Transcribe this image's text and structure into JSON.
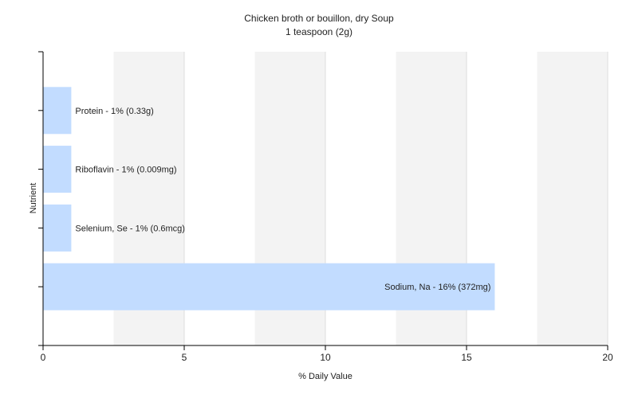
{
  "chart_data": {
    "type": "bar",
    "orientation": "horizontal",
    "title": "Chicken broth or bouillon, dry Soup",
    "subtitle": "1 teaspoon (2g)",
    "xlabel": "% Daily Value",
    "ylabel": "Nutrient",
    "xlim": [
      0,
      20
    ],
    "xticks": [
      0,
      5,
      10,
      15,
      20
    ],
    "grid": true,
    "legend": "none",
    "categories": [
      "Protein",
      "Riboflavin",
      "Selenium, Se",
      "Sodium, Na"
    ],
    "values": [
      1,
      1,
      1,
      16
    ],
    "data_labels": [
      "Protein - 1% (0.33g)",
      "Riboflavin - 1% (0.009mg)",
      "Selenium, Se - 1% (0.6mcg)",
      "Sodium, Na - 16% (372mg)"
    ],
    "colors": {
      "bar": "#c2dcff",
      "axis": "#000000",
      "grid": "#dddddd",
      "band_light": "#ffffff",
      "band_dark": "#f3f3f3"
    }
  }
}
